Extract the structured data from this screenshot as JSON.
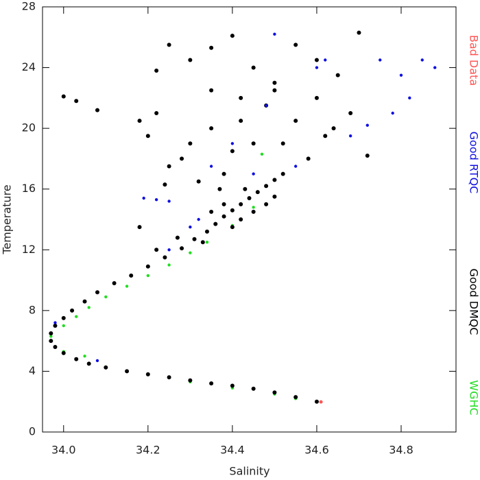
{
  "chart_data": {
    "type": "scatter",
    "xlabel": "Salinity",
    "ylabel": "Temperature",
    "xlim": [
      33.95,
      34.93
    ],
    "ylim": [
      0,
      28
    ],
    "xticks": [
      {
        "value": 34,
        "label": "34.0"
      },
      34.2,
      34.4,
      34.6,
      34.8
    ],
    "yticks": [
      0,
      4,
      8,
      12,
      16,
      20,
      24,
      28
    ],
    "series": [
      {
        "name": "Bad Data",
        "color": "#ff5555",
        "marker_size": 2.5,
        "x": [
          34.61
        ],
        "values": [
          1.98
        ]
      },
      {
        "name": "Good RTQC",
        "color": "#1010e0",
        "marker_size": 2.2,
        "x": [
          34.5,
          34.62,
          34.75,
          34.8,
          34.88,
          34.82,
          34.78,
          34.72,
          34.6,
          34.48,
          34.4,
          34.35,
          34.22,
          34.19,
          34.25,
          34.3,
          34.25,
          34.08,
          33.98,
          34.45,
          34.55,
          34.68,
          34.85,
          34.32
        ],
        "values": [
          26.2,
          24.5,
          24.5,
          23.5,
          24.0,
          22.0,
          21.0,
          20.2,
          24.0,
          21.5,
          19.0,
          17.5,
          15.3,
          15.4,
          15.2,
          13.5,
          12.0,
          4.7,
          7.2,
          17.0,
          17.5,
          19.5,
          24.5,
          14.0
        ]
      },
      {
        "name": "Good DMQC",
        "color": "#000000",
        "marker_size": 3,
        "x": [
          34.6,
          34.55,
          34.5,
          34.45,
          34.4,
          34.35,
          34.3,
          34.25,
          34.2,
          34.15,
          34.1,
          34.06,
          34.03,
          34.0,
          33.98,
          33.97,
          33.97,
          33.98,
          34.0,
          34.02,
          34.05,
          34.08,
          34.12,
          34.16,
          34.2,
          34.24,
          34.28,
          34.31,
          34.34,
          34.36,
          34.38,
          34.4,
          34.42,
          34.44,
          34.46,
          34.48,
          34.5,
          34.52,
          34.4,
          34.42,
          34.38,
          34.45,
          34.35,
          34.48,
          34.5,
          34.43,
          34.37,
          34.33,
          34.27,
          34.22,
          34.0,
          34.03,
          34.08,
          34.18,
          34.22,
          34.25,
          34.3,
          34.35,
          34.4,
          34.42,
          34.45,
          34.5,
          34.55,
          34.6,
          34.65,
          34.7,
          34.72,
          34.68,
          34.62,
          34.58,
          34.55,
          34.48,
          34.45,
          34.4,
          34.35,
          34.3,
          34.25,
          34.2,
          34.22,
          34.28,
          34.32,
          34.24,
          34.18,
          34.38,
          34.42,
          34.52,
          34.6,
          34.64,
          34.5,
          34.35
        ],
        "values": [
          2.0,
          2.3,
          2.6,
          2.85,
          3.05,
          3.2,
          3.4,
          3.6,
          3.8,
          4.0,
          4.25,
          4.5,
          4.8,
          5.2,
          5.6,
          6.0,
          6.5,
          7.0,
          7.5,
          8.0,
          8.6,
          9.2,
          9.8,
          10.3,
          10.9,
          11.5,
          12.1,
          12.7,
          13.2,
          13.7,
          14.2,
          14.6,
          15.0,
          15.4,
          15.8,
          16.2,
          16.6,
          17.0,
          13.5,
          14.0,
          15.0,
          14.5,
          14.5,
          15.0,
          15.5,
          16.0,
          16.0,
          12.5,
          12.8,
          12.0,
          22.1,
          21.8,
          21.2,
          20.5,
          23.8,
          25.5,
          24.5,
          25.3,
          26.1,
          22.0,
          24.0,
          23.0,
          25.5,
          22.0,
          23.5,
          26.3,
          18.2,
          21.0,
          19.5,
          18.0,
          20.5,
          21.5,
          19.0,
          18.5,
          20.0,
          19.0,
          17.5,
          19.5,
          21.0,
          18.0,
          16.5,
          16.3,
          13.5,
          17.0,
          20.5,
          19.0,
          24.5,
          20.0,
          22.5,
          22.5
        ]
      },
      {
        "name": "WGHC",
        "color": "#22dd22",
        "marker_size": 2.2,
        "x": [
          33.97,
          34.0,
          34.03,
          34.06,
          34.1,
          34.15,
          34.2,
          34.25,
          34.3,
          34.34,
          34.4,
          34.45,
          34.47,
          34.0,
          34.05,
          34.2,
          34.3,
          34.4,
          34.5,
          34.55
        ],
        "values": [
          6.3,
          7.0,
          7.6,
          8.2,
          8.9,
          9.6,
          10.3,
          11.0,
          11.8,
          12.5,
          13.6,
          14.8,
          18.3,
          5.3,
          5.0,
          3.8,
          3.3,
          2.9,
          2.5,
          2.2
        ]
      }
    ]
  }
}
